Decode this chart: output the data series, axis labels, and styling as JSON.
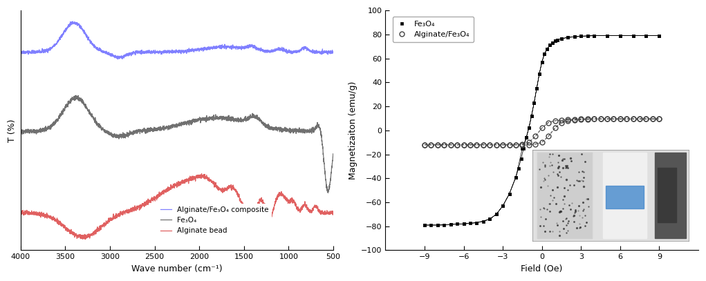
{
  "ftir": {
    "ylabel": "T (%)",
    "xlabel": "Wave number (cm⁻¹)",
    "blue_color": "#8080ff",
    "gray_color": "#707070",
    "red_color": "#e06060",
    "legend_labels": [
      "Alginate/Fe₃O₄ composite",
      "Fe₃O₄",
      "Alginate bead"
    ],
    "xticks": [
      4000,
      3500,
      3000,
      2500,
      2000,
      1500,
      1000,
      500
    ]
  },
  "mag": {
    "xmin": -12,
    "xmax": 12,
    "ymin": -100,
    "ymax": 100,
    "xlabel": "Field (Oe)",
    "ylabel": "Magnetizaiton (emu/g)",
    "fe3o4_color": "#000000",
    "alginate_color": "#444444",
    "legend_labels": [
      "Fe₃O₄",
      "Alginate/Fe₃O₄"
    ],
    "xticks": [
      -9,
      -6,
      -3,
      0,
      3,
      6,
      9
    ],
    "yticks": [
      -100,
      -80,
      -60,
      -40,
      -20,
      0,
      20,
      40,
      60,
      80,
      100
    ]
  }
}
